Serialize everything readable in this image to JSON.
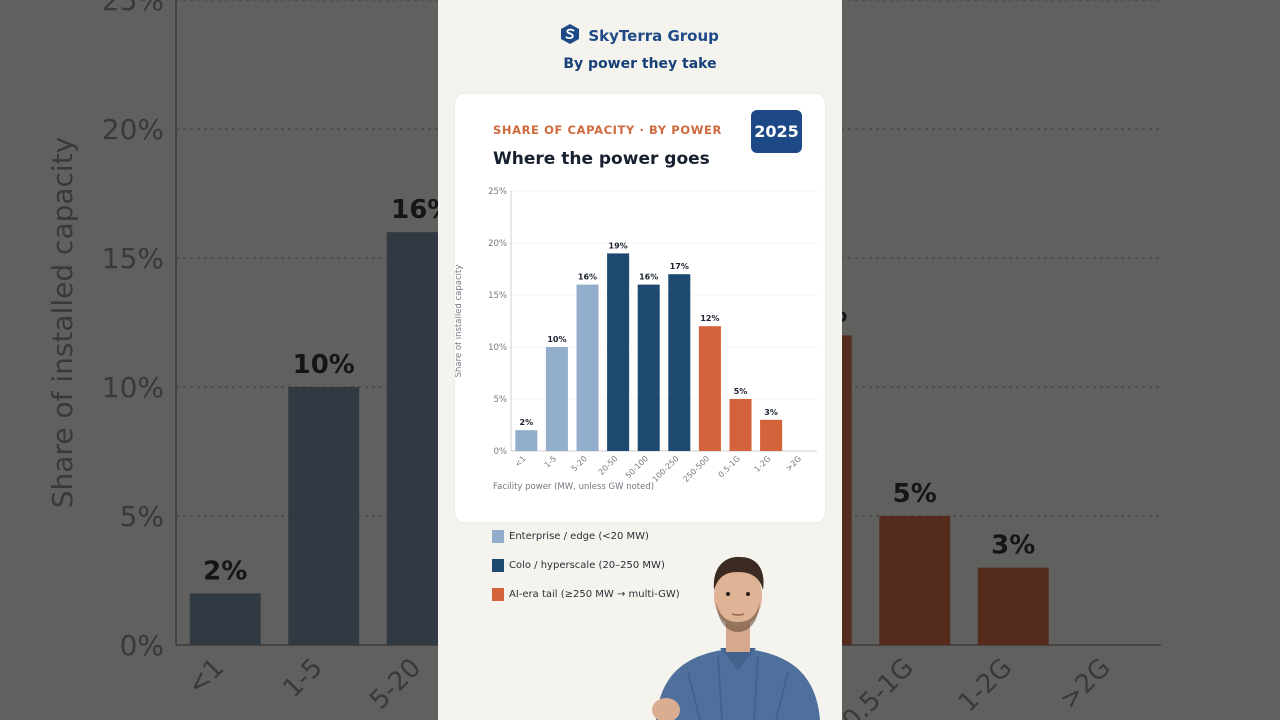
{
  "brand": {
    "name": "SkyTerra Group",
    "logo_icon": "hexagon-s-logo-icon"
  },
  "subhead": "By power they take",
  "card": {
    "kicker": "SHARE OF CAPACITY  ·  BY POWER",
    "title": "Where the power goes",
    "year_badge": "2025",
    "x_caption": "Facility power  (MW, unless GW noted)"
  },
  "legend": [
    {
      "label": "Enterprise / edge  (<20 MW)",
      "color": "#93aecd"
    },
    {
      "label": "Colo / hyperscale  (20–250 MW)",
      "color": "#1e4a72"
    },
    {
      "label": "AI-era tail  (≥250 MW → multi-GW)",
      "color": "#d4623a"
    }
  ],
  "colors": {
    "brand": "#1d4a86",
    "accent": "#cf6a3d"
  },
  "chart_data": {
    "type": "bar",
    "categories": [
      "<1",
      "1-5",
      "5-20",
      "20-50",
      "50-100",
      "100-250",
      "250-500",
      "0.5-1G",
      "1-2G",
      ">2G"
    ],
    "values": [
      2,
      10,
      16,
      19,
      16,
      17,
      12,
      5,
      3,
      0
    ],
    "value_labels": [
      "2%",
      "10%",
      "16%",
      "19%",
      "16%",
      "17%",
      "12%",
      "5%",
      "3%",
      ""
    ],
    "groups": [
      0,
      0,
      0,
      1,
      1,
      1,
      2,
      2,
      2,
      2
    ],
    "ylabel": "Share of installed capacity",
    "xlabel": "Facility power  (MW, unless GW noted)",
    "ylim": [
      0,
      25
    ],
    "yticks": [
      0,
      5,
      10,
      15,
      20,
      25
    ],
    "ytick_labels": [
      "0%",
      "5%",
      "10%",
      "15%",
      "20%",
      "25%"
    ],
    "grid": true
  }
}
